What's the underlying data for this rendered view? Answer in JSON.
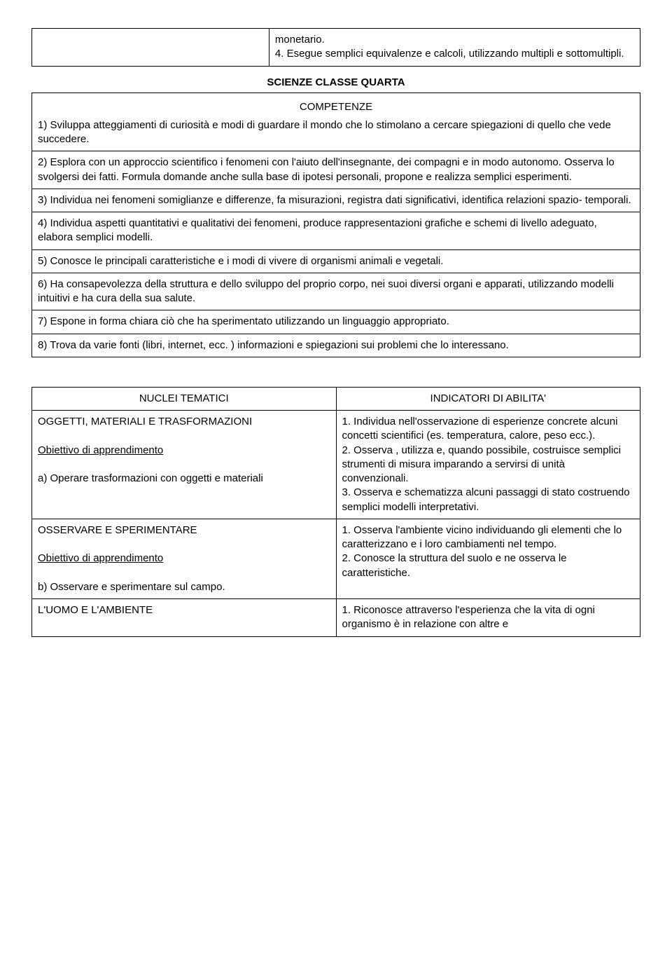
{
  "top_box": {
    "left": "",
    "right": "monetario.\n4. Esegue semplici equivalenze e calcoli, utilizzando multipli e sottomultipli."
  },
  "section_title": "SCIENZE CLASSE QUARTA",
  "competenze_label": "COMPETENZE",
  "competenze": [
    "1) Sviluppa atteggiamenti di curiosità e modi di guardare il mondo che lo stimolano a cercare spiegazioni di quello che vede succedere.",
    "2) Esplora con un approccio scientifico i fenomeni con l'aiuto dell'insegnante, dei compagni e in modo autonomo. Osserva lo svolgersi dei fatti. Formula domande anche sulla base di ipotesi personali, propone e realizza semplici esperimenti.",
    "3) Individua nei fenomeni somiglianze e differenze, fa misurazioni, registra dati significativi, identifica relazioni spazio- temporali.",
    "4) Individua aspetti quantitativi e qualitativi dei fenomeni, produce rappresentazioni grafiche e schemi di livello adeguato, elabora semplici modelli.",
    "5) Conosce le principali caratteristiche e i modi di vivere di organismi animali e vegetali.",
    "6) Ha consapevolezza della struttura e dello sviluppo del proprio corpo, nei suoi diversi organi e apparati, utilizzando modelli intuitivi e ha cura della sua salute.",
    "7) Espone in forma chiara ciò che ha sperimentato utilizzando un linguaggio appropriato.",
    "8) Trova da varie fonti (libri, internet, ecc. ) informazioni e spiegazioni sui problemi che lo interessano."
  ],
  "table2": {
    "header_left": "NUCLEI TEMATICI",
    "header_right": "INDICATORI DI ABILITA'",
    "rows": [
      {
        "left_title": "OGGETTI, MATERIALI E TRASFORMAZIONI",
        "left_obj_label": "Obiettivo di apprendimento",
        "left_body": "a)  Operare  trasformazioni  con  oggetti  e materiali",
        "right": "1. Individua nell'osservazione di esperienze concrete alcuni concetti scientifici (es. temperatura, calore, peso ecc.).\n2. Osserva , utilizza e, quando possibile, costruisce semplici strumenti di misura imparando a servirsi di unità convenzionali.\n3. Osserva e schematizza alcuni passaggi di stato costruendo semplici modelli interpretativi."
      },
      {
        "left_title": " OSSERVARE E SPERIMENTARE",
        "left_obj_label": " Obiettivo di apprendimento",
        "left_body": "b) Osservare e sperimentare sul campo.",
        "right": "1. Osserva l'ambiente vicino individuando gli elementi che lo caratterizzano e i loro cambiamenti nel tempo.\n2. Conosce la struttura del suolo e ne osserva le caratteristiche."
      },
      {
        "left_title": "L'UOMO E L'AMBIENTE",
        "left_obj_label": "",
        "left_body": "",
        "right": "1. Riconosce attraverso l'esperienza che la vita di ogni organismo è in relazione con altre e"
      }
    ]
  }
}
